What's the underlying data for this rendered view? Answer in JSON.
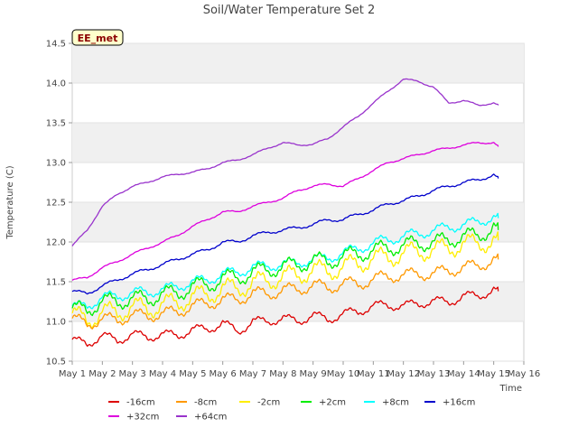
{
  "chart_data": {
    "type": "line",
    "title": "Soil/Water Temperature Set 2",
    "xlabel": "Time",
    "ylabel": "Temperature (C)",
    "badge": "EE_met",
    "xlim": [
      1,
      16
    ],
    "ylim": [
      10.5,
      14.5
    ],
    "x_ticks": [
      1,
      2,
      3,
      4,
      5,
      6,
      7,
      8,
      9,
      10,
      11,
      12,
      13,
      14,
      15,
      16
    ],
    "x_tick_labels": [
      "May 1",
      "May 2",
      "May 3",
      "May 4",
      "May 5",
      "May 6",
      "May 7",
      "May 8",
      "May 9",
      "May 10",
      "May 11",
      "May 12",
      "May 13",
      "May 14",
      "May 15",
      "May 16"
    ],
    "y_ticks": [
      10.5,
      11.0,
      11.5,
      12.0,
      12.5,
      13.0,
      13.5,
      14.0,
      14.5
    ],
    "y_tick_labels": [
      "10.5",
      "11.0",
      "11.5",
      "12.0",
      "12.5",
      "13.0",
      "13.5",
      "14.0",
      "14.5"
    ],
    "grid": true,
    "legend_position": "bottom",
    "x": [
      1.0,
      1.5,
      2.0,
      2.5,
      3.0,
      3.5,
      4.0,
      4.5,
      5.0,
      5.5,
      6.0,
      6.5,
      7.0,
      7.5,
      8.0,
      8.5,
      9.0,
      9.5,
      10.0,
      10.5,
      11.0,
      11.5,
      12.0,
      12.5,
      13.0,
      13.5,
      14.0,
      14.5,
      15.0,
      15.15
    ],
    "series": [
      {
        "name": "-16cm",
        "color": "#dd0000",
        "values": [
          10.78,
          10.7,
          10.84,
          10.74,
          10.86,
          10.78,
          10.86,
          10.8,
          10.92,
          10.88,
          11.0,
          10.85,
          11.02,
          10.98,
          11.06,
          10.98,
          11.1,
          11.0,
          11.12,
          11.1,
          11.22,
          11.18,
          11.22,
          11.2,
          11.28,
          11.22,
          11.34,
          11.3,
          11.42,
          11.38
        ]
      },
      {
        "name": "+32cm",
        "color": "#dd00dd",
        "values": [
          11.52,
          11.55,
          11.68,
          11.75,
          11.85,
          11.92,
          12.0,
          12.08,
          12.2,
          12.28,
          12.38,
          12.38,
          12.45,
          12.5,
          12.55,
          12.65,
          12.7,
          12.73,
          12.7,
          12.8,
          12.9,
          13.0,
          13.05,
          13.1,
          13.15,
          13.18,
          13.22,
          13.25,
          13.25,
          13.2
        ]
      },
      {
        "name": "-8cm",
        "color": "#ff9900",
        "values": [
          11.05,
          10.95,
          11.05,
          11.0,
          11.1,
          11.05,
          11.12,
          11.1,
          11.22,
          11.2,
          11.3,
          11.25,
          11.38,
          11.32,
          11.42,
          11.38,
          11.48,
          11.4,
          11.5,
          11.45,
          11.55,
          11.55,
          11.6,
          11.58,
          11.62,
          11.62,
          11.7,
          11.68,
          11.8,
          11.78
        ]
      },
      {
        "name": "+64cm",
        "color": "#9933cc",
        "values": [
          11.95,
          12.15,
          12.45,
          12.6,
          12.7,
          12.75,
          12.82,
          12.85,
          12.88,
          12.92,
          13.0,
          13.03,
          13.1,
          13.18,
          13.25,
          13.22,
          13.23,
          13.3,
          13.45,
          13.58,
          13.75,
          13.9,
          14.05,
          14.02,
          13.95,
          13.75,
          13.78,
          13.72,
          13.75,
          13.72
        ]
      },
      {
        "name": "-2cm",
        "color": "#ffee00",
        "values": [
          11.12,
          10.98,
          11.15,
          11.08,
          11.22,
          11.12,
          11.25,
          11.2,
          11.35,
          11.3,
          11.45,
          11.38,
          11.52,
          11.48,
          11.6,
          11.55,
          11.68,
          11.6,
          11.72,
          11.7,
          11.82,
          11.78,
          11.88,
          11.86,
          11.92,
          11.9,
          12.0,
          11.95,
          12.05,
          12.02
        ]
      },
      {
        "name": "+2cm",
        "color": "#00ee00",
        "values": [
          11.18,
          11.12,
          11.28,
          11.22,
          11.32,
          11.25,
          11.38,
          11.32,
          11.48,
          11.42,
          11.58,
          11.52,
          11.65,
          11.62,
          11.72,
          11.68,
          11.8,
          11.72,
          11.85,
          11.82,
          11.92,
          11.9,
          11.98,
          11.96,
          12.02,
          12.0,
          12.1,
          12.05,
          12.22,
          12.15
        ]
      },
      {
        "name": "+8cm",
        "color": "#00ffff",
        "values": [
          11.2,
          11.18,
          11.32,
          11.3,
          11.38,
          11.35,
          11.42,
          11.42,
          11.52,
          11.5,
          11.62,
          11.6,
          11.7,
          11.68,
          11.74,
          11.72,
          11.8,
          11.78,
          11.88,
          11.9,
          12.0,
          12.02,
          12.08,
          12.1,
          12.15,
          12.18,
          12.22,
          12.25,
          12.32,
          12.3
        ]
      },
      {
        "name": "+16cm",
        "color": "#0000cc",
        "values": [
          11.38,
          11.35,
          11.45,
          11.52,
          11.6,
          11.65,
          11.72,
          11.78,
          11.85,
          11.9,
          12.0,
          12.0,
          12.08,
          12.12,
          12.15,
          12.18,
          12.22,
          12.28,
          12.28,
          12.35,
          12.4,
          12.48,
          12.52,
          12.58,
          12.65,
          12.7,
          12.75,
          12.78,
          12.85,
          12.8
        ]
      }
    ]
  }
}
